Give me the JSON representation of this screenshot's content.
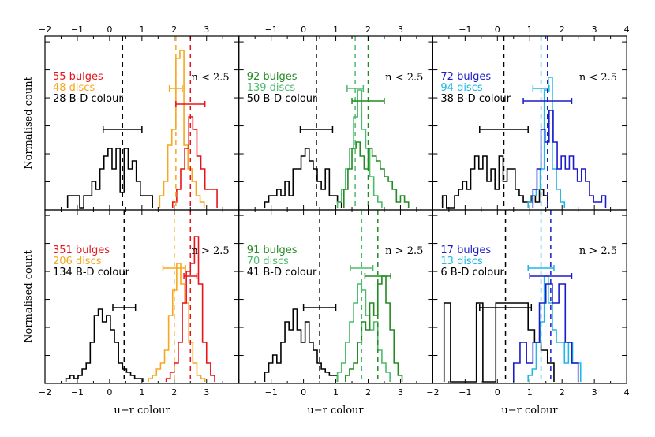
{
  "figure": {
    "xlabel": "u−r colour",
    "ylabel": "Normalised count"
  },
  "colors": {
    "red": "#e8141a",
    "orange": "#f5a71e",
    "black": "#000000",
    "green": "#228b22",
    "lightgreen": "#4cbb6c",
    "blue": "#1b1bc9",
    "cyan": "#20b7e6"
  },
  "chart_data": [
    {
      "type": "step-histogram",
      "panel": "top-left",
      "xlim": [
        -2,
        4
      ],
      "xticks": [
        -2,
        -1,
        0,
        1,
        2,
        3
      ],
      "ylim": [
        0,
        1.0
      ],
      "n_label": "n < 2.5",
      "legend": [
        {
          "text": "55 bulges",
          "color": "red"
        },
        {
          "text": "48 discs",
          "color": "orange"
        },
        {
          "text": "28 B-D colour",
          "color": "black"
        }
      ],
      "series": [
        {
          "name": "B-D colour",
          "color": "black",
          "x0": -1.3,
          "bw": 0.125,
          "values": [
            0.08,
            0.08,
            0.08,
            0,
            0.08,
            0.08,
            0.17,
            0.12,
            0.25,
            0.33,
            0.38,
            0.25,
            0.38,
            0.1,
            0.38,
            0.25,
            0.3,
            0.17,
            0.08,
            0.08,
            0.08
          ]
        },
        {
          "name": "discs",
          "color": "orange",
          "x0": 1.55,
          "bw": 0.125,
          "values": [
            0.08,
            0.17,
            0.4,
            0.5,
            0.95,
            1.0,
            0.4,
            0.25,
            0.17,
            0.08,
            0.04
          ]
        },
        {
          "name": "bulges",
          "color": "red",
          "x0": 1.95,
          "bw": 0.125,
          "values": [
            0.04,
            0.12,
            0.25,
            0.38,
            0.58,
            0.5,
            0.33,
            0.25,
            0.12,
            0.12,
            0.12
          ]
        }
      ],
      "vlines": [
        {
          "x": 0.4,
          "color": "black"
        },
        {
          "x": 2.05,
          "color": "orange"
        },
        {
          "x": 2.5,
          "color": "red"
        }
      ],
      "errorbars": [
        {
          "x": 0.4,
          "xerr": 0.6,
          "y": 0.5,
          "color": "black"
        },
        {
          "x": 2.05,
          "xerr": 0.2,
          "y": 0.76,
          "color": "orange"
        },
        {
          "x": 2.5,
          "xerr": 0.45,
          "y": 0.66,
          "color": "red"
        }
      ]
    },
    {
      "type": "step-histogram",
      "panel": "top-middle",
      "xlim": [
        -2,
        4
      ],
      "xticks": [
        -1,
        0,
        1,
        2,
        3
      ],
      "ylim": [
        0,
        1.0
      ],
      "n_label": "n < 2.5",
      "legend": [
        {
          "text": "92 bulges",
          "color": "green"
        },
        {
          "text": "139 discs",
          "color": "lightgreen"
        },
        {
          "text": "50 B-D colour",
          "color": "black"
        }
      ],
      "series": [
        {
          "name": "B-D colour",
          "color": "black",
          "x0": -1.2,
          "bw": 0.125,
          "values": [
            0.04,
            0.08,
            0.08,
            0.12,
            0.08,
            0.17,
            0.08,
            0.25,
            0.25,
            0.33,
            0.38,
            0.3,
            0.25,
            0.17,
            0.12,
            0.25,
            0.08,
            0.08,
            0.04
          ]
        },
        {
          "name": "discs",
          "color": "lightgreen",
          "x0": 1.05,
          "bw": 0.125,
          "values": [
            0.04,
            0.12,
            0.25,
            0.38,
            0.58,
            0.75,
            0.5,
            0.38,
            0.2,
            0.08,
            0.04
          ]
        },
        {
          "name": "bulges",
          "color": "green",
          "x0": 1.25,
          "bw": 0.125,
          "values": [
            0.12,
            0.25,
            0.38,
            0.42,
            0.33,
            0.25,
            0.38,
            0.33,
            0.3,
            0.25,
            0.2,
            0.17,
            0.12,
            0.04,
            0.08,
            0.04
          ]
        }
      ],
      "vlines": [
        {
          "x": 0.4,
          "color": "black"
        },
        {
          "x": 1.6,
          "color": "lightgreen"
        },
        {
          "x": 2.0,
          "color": "green"
        }
      ],
      "errorbars": [
        {
          "x": 0.4,
          "xerr": 0.5,
          "y": 0.5,
          "color": "black"
        },
        {
          "x": 1.6,
          "xerr": 0.25,
          "y": 0.76,
          "color": "lightgreen"
        },
        {
          "x": 2.0,
          "xerr": 0.5,
          "y": 0.68,
          "color": "green"
        }
      ]
    },
    {
      "type": "step-histogram",
      "panel": "top-right",
      "xlim": [
        -2,
        4
      ],
      "xticks": [
        -1,
        0,
        1,
        2,
        3,
        4
      ],
      "ylim": [
        0,
        1.0
      ],
      "n_label": "n < 2.5",
      "legend": [
        {
          "text": "72 bulges",
          "color": "blue"
        },
        {
          "text": "94 discs",
          "color": "cyan"
        },
        {
          "text": "38 B-D colour",
          "color": "black"
        }
      ],
      "series": [
        {
          "name": "B-D colour",
          "color": "black",
          "x0": -1.7,
          "bw": 0.125,
          "values": [
            0.08,
            0,
            0,
            0.08,
            0.12,
            0.17,
            0.12,
            0.25,
            0.33,
            0.25,
            0.33,
            0.17,
            0.25,
            0.12,
            0.33,
            0.17,
            0.25,
            0.25,
            0.12,
            0.08,
            0.04,
            0.04,
            0.08,
            0.04,
            0.12,
            0.08
          ]
        },
        {
          "name": "discs",
          "color": "cyan",
          "x0": 0.95,
          "bw": 0.125,
          "values": [
            0.04,
            0.08,
            0.12,
            0.25,
            0.75,
            0.83,
            0.25,
            0.12,
            0.04
          ]
        },
        {
          "name": "bulges",
          "color": "blue",
          "x0": 1.1,
          "bw": 0.125,
          "values": [
            0.12,
            0.25,
            0.5,
            0.42,
            0.62,
            0.42,
            0.25,
            0.33,
            0.25,
            0.33,
            0.25,
            0.17,
            0.25,
            0.17,
            0.08,
            0.04,
            0.04,
            0.08
          ]
        }
      ],
      "vlines": [
        {
          "x": 0.2,
          "color": "black"
        },
        {
          "x": 1.35,
          "color": "cyan"
        },
        {
          "x": 1.55,
          "color": "blue"
        }
      ],
      "errorbars": [
        {
          "x": 0.2,
          "xerr": 0.75,
          "y": 0.5,
          "color": "black"
        },
        {
          "x": 1.35,
          "xerr": 0.25,
          "y": 0.76,
          "color": "cyan"
        },
        {
          "x": 1.55,
          "xerr": 0.75,
          "y": 0.68,
          "color": "blue"
        }
      ]
    },
    {
      "type": "step-histogram",
      "panel": "bottom-left",
      "xlim": [
        -2,
        4
      ],
      "xticks": [
        -2,
        -1,
        0,
        1,
        2,
        3
      ],
      "ylim": [
        0,
        1.0
      ],
      "n_label": "n > 2.5",
      "legend": [
        {
          "text": "351 bulges",
          "color": "red"
        },
        {
          "text": "206 discs",
          "color": "orange"
        },
        {
          "text": "134 B-D colour",
          "color": "black"
        }
      ],
      "series": [
        {
          "name": "B-D colour",
          "color": "black",
          "x0": -1.35,
          "bw": 0.125,
          "values": [
            0.02,
            0.04,
            0.02,
            0.04,
            0.08,
            0.12,
            0.25,
            0.42,
            0.46,
            0.38,
            0.42,
            0.33,
            0.25,
            0.12,
            0.08,
            0.06,
            0.04,
            0.02,
            0.02
          ]
        },
        {
          "name": "discs",
          "color": "orange",
          "x0": 1.2,
          "bw": 0.125,
          "values": [
            0.02,
            0.04,
            0.08,
            0.12,
            0.2,
            0.42,
            0.58,
            0.75,
            0.62,
            0.5,
            0.25,
            0.12,
            0.04,
            0.02
          ]
        },
        {
          "name": "bulges",
          "color": "red",
          "x0": 1.75,
          "bw": 0.125,
          "values": [
            0.02,
            0.06,
            0.12,
            0.25,
            0.5,
            0.7,
            0.75,
            0.92,
            0.62,
            0.25,
            0.12,
            0.04
          ]
        }
      ],
      "vlines": [
        {
          "x": 0.45,
          "color": "black"
        },
        {
          "x": 2.0,
          "color": "orange"
        },
        {
          "x": 2.5,
          "color": "red"
        }
      ],
      "errorbars": [
        {
          "x": 0.45,
          "xerr": 0.35,
          "y": 0.47,
          "color": "black"
        },
        {
          "x": 2.0,
          "xerr": 0.35,
          "y": 0.72,
          "color": "orange"
        },
        {
          "x": 2.5,
          "xerr": 0.2,
          "y": 0.67,
          "color": "red"
        }
      ]
    },
    {
      "type": "step-histogram",
      "panel": "bottom-middle",
      "xlim": [
        -2,
        4
      ],
      "xticks": [
        -1,
        0,
        1,
        2,
        3
      ],
      "ylim": [
        0,
        1.0
      ],
      "n_label": "n > 2.5",
      "legend": [
        {
          "text": "91 bulges",
          "color": "green"
        },
        {
          "text": "70 discs",
          "color": "lightgreen"
        },
        {
          "text": "41 B-D colour",
          "color": "black"
        }
      ],
      "series": [
        {
          "name": "B-D colour",
          "color": "black",
          "x0": -1.2,
          "bw": 0.125,
          "values": [
            0.06,
            0.12,
            0.17,
            0.12,
            0.25,
            0.38,
            0.33,
            0.46,
            0.33,
            0.25,
            0.38,
            0.25,
            0.2,
            0.12,
            0.08,
            0.06,
            0.04,
            0.04
          ]
        },
        {
          "name": "discs",
          "color": "lightgreen",
          "x0": 1.05,
          "bw": 0.125,
          "values": [
            0.06,
            0.12,
            0.25,
            0.38,
            0.5,
            0.62,
            0.58,
            0.42,
            0.33,
            0.38,
            0.2,
            0.12,
            0.06
          ]
        },
        {
          "name": "bulges",
          "color": "green",
          "x0": 1.3,
          "bw": 0.125,
          "values": [
            0.04,
            0.08,
            0.12,
            0.25,
            0.38,
            0.33,
            0.5,
            0.42,
            0.62,
            0.67,
            0.5,
            0.33,
            0.12,
            0.04
          ]
        }
      ],
      "vlines": [
        {
          "x": 0.5,
          "color": "black"
        },
        {
          "x": 1.8,
          "color": "lightgreen"
        },
        {
          "x": 2.3,
          "color": "green"
        }
      ],
      "errorbars": [
        {
          "x": 0.5,
          "xerr": 0.5,
          "y": 0.47,
          "color": "black"
        },
        {
          "x": 1.8,
          "xerr": 0.35,
          "y": 0.72,
          "color": "lightgreen"
        },
        {
          "x": 2.3,
          "xerr": 0.4,
          "y": 0.67,
          "color": "green"
        }
      ]
    },
    {
      "type": "step-histogram",
      "panel": "bottom-right",
      "xlim": [
        -2,
        4
      ],
      "xticks": [
        -2,
        -1,
        0,
        1,
        2,
        3,
        4
      ],
      "ylim": [
        0,
        1.0
      ],
      "n_label": "n > 2.5",
      "legend": [
        {
          "text": "17 bulges",
          "color": "blue"
        },
        {
          "text": "13 discs",
          "color": "cyan"
        },
        {
          "text": "6 B-D colour",
          "color": "black"
        }
      ],
      "series": [
        {
          "name": "B-D colour",
          "color": "black",
          "x0": -1.65,
          "bw": 0.2,
          "values": [
            0.5,
            0,
            0,
            0,
            0,
            0.5,
            0,
            0,
            0.5,
            0.5,
            0.5,
            0.5,
            0.5,
            0.33,
            0.25,
            0.2,
            0.12
          ]
        },
        {
          "name": "discs",
          "color": "cyan",
          "x0": 0.95,
          "bw": 0.125,
          "values": [
            0.04,
            0.08,
            0.25,
            0.38,
            0.67,
            0.5,
            0.33,
            0.25,
            0.25,
            0.12,
            0.25,
            0.12,
            0.12
          ]
        },
        {
          "name": "bulges",
          "color": "blue",
          "x0": 0.5,
          "bw": 0.2,
          "values": [
            0.12,
            0.25,
            0.12,
            0.25,
            0.5,
            0.62,
            0.5,
            0.62,
            0.25,
            0.12
          ]
        }
      ],
      "vlines": [
        {
          "x": 0.25,
          "color": "black"
        },
        {
          "x": 1.35,
          "color": "cyan"
        },
        {
          "x": 1.65,
          "color": "blue"
        }
      ],
      "errorbars": [
        {
          "x": 0.25,
          "xerr": 0.8,
          "y": 0.47,
          "color": "black"
        },
        {
          "x": 1.35,
          "xerr": 0.4,
          "y": 0.72,
          "color": "cyan"
        },
        {
          "x": 1.65,
          "xerr": 0.65,
          "y": 0.67,
          "color": "blue"
        }
      ]
    }
  ]
}
